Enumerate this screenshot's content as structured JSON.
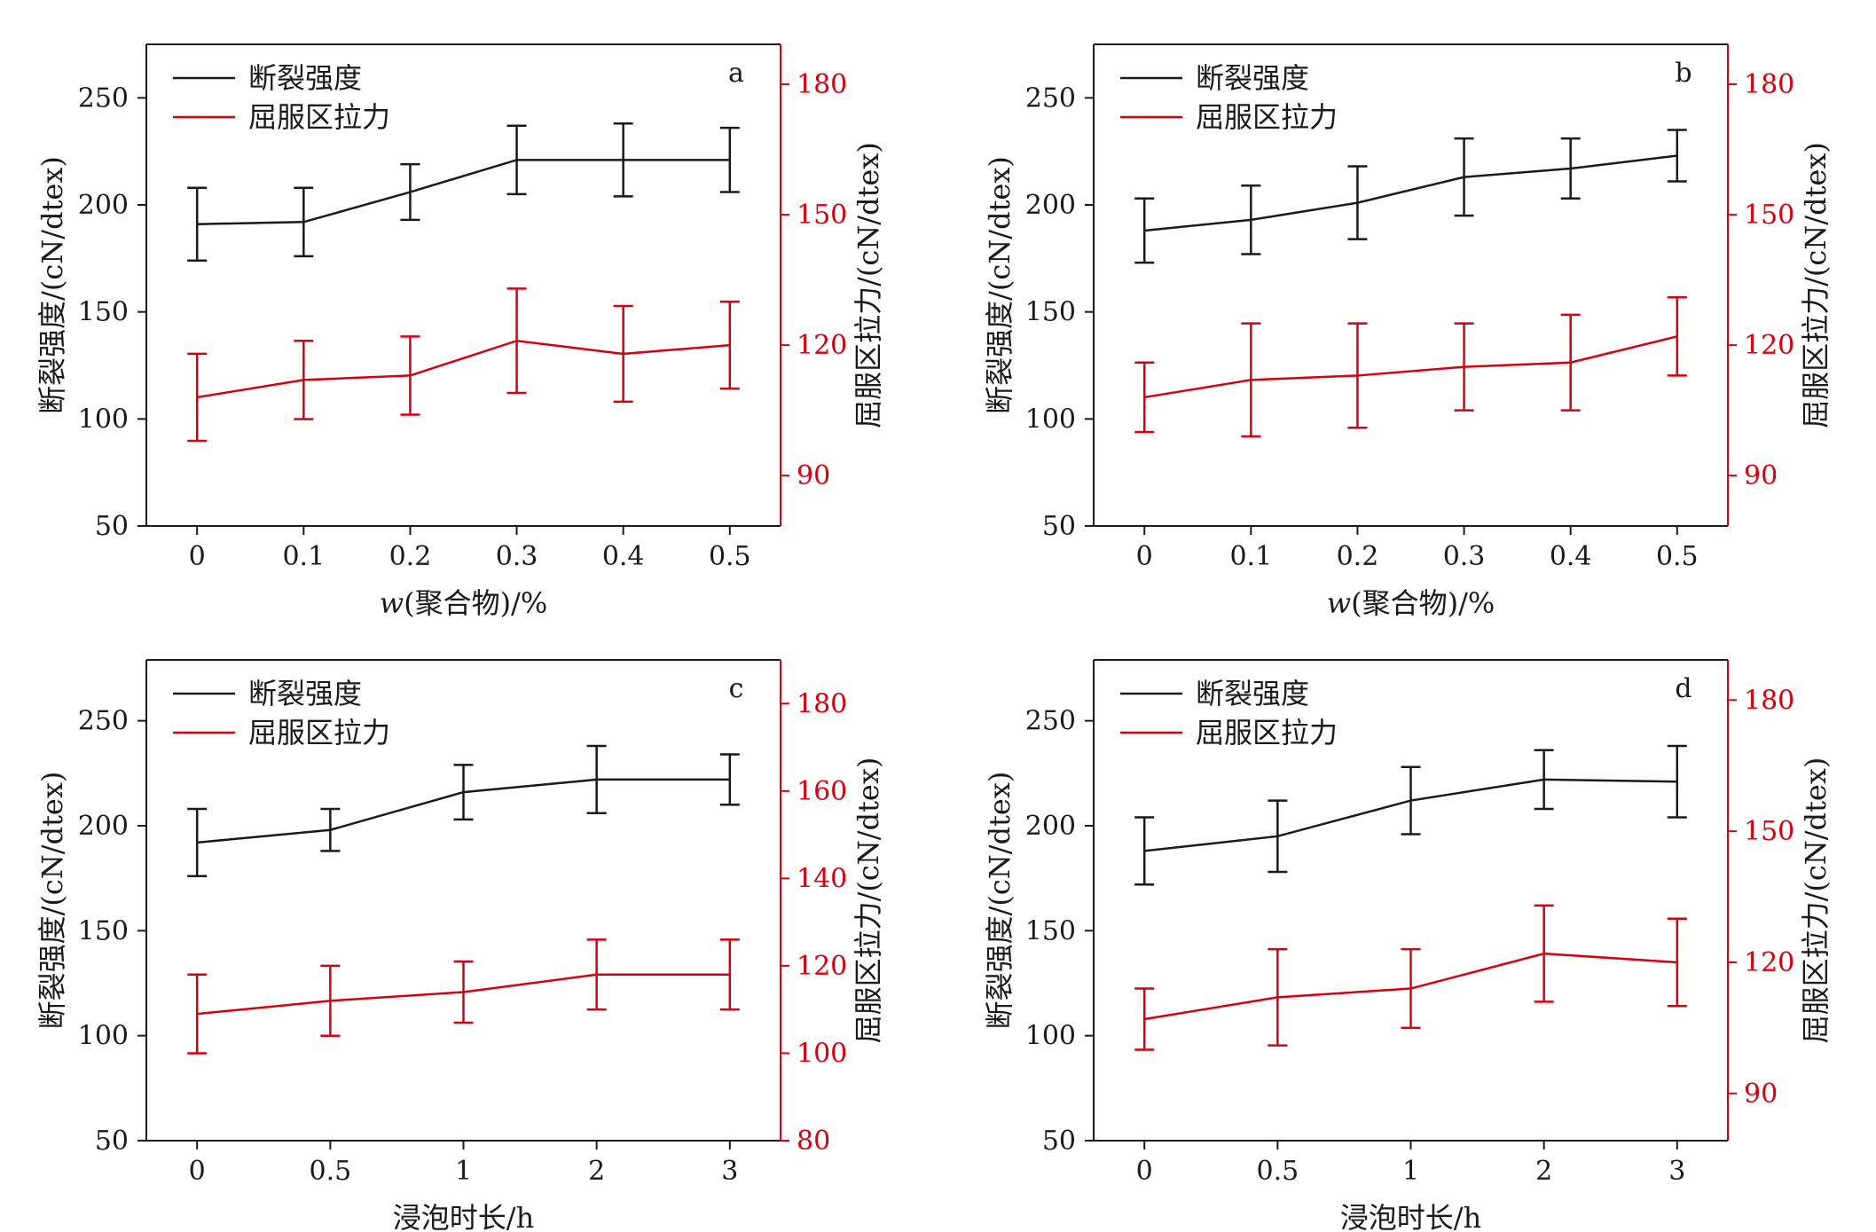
{
  "colors": {
    "black_series": "#1a1a1a",
    "red_series": "#d7000f"
  },
  "chart_data": [
    {
      "id": "a",
      "type": "line",
      "panel_label": "a",
      "xlabel_italic": "w",
      "xlabel_rest": "(聚合物)/%",
      "ylabel": "断裂强度/(cN/dtex)",
      "y2label": "屈服区拉力/(cN/dtex)",
      "categories": [
        "0",
        "0.1",
        "0.2",
        "0.3",
        "0.4",
        "0.5"
      ],
      "ylim": [
        50,
        275
      ],
      "yticks": [
        50,
        100,
        150,
        200,
        250
      ],
      "y2lim": [
        78.4,
        189.2
      ],
      "y2ticks": [
        90,
        120,
        150,
        180
      ],
      "legend_position": "top-left",
      "series": [
        {
          "name": "断裂强度",
          "axis": "left",
          "values": [
            191,
            192,
            206,
            221,
            221,
            221
          ],
          "err": [
            17,
            16,
            13,
            16,
            17,
            15
          ]
        },
        {
          "name": "屈服区拉力",
          "axis": "right",
          "values": [
            108,
            112,
            113,
            121,
            118,
            120
          ],
          "err": [
            10,
            9,
            9,
            12,
            11,
            10
          ]
        }
      ]
    },
    {
      "id": "b",
      "type": "line",
      "panel_label": "b",
      "xlabel_italic": "w",
      "xlabel_rest": "(聚合物)/%",
      "ylabel": "断裂强度/(cN/dtex)",
      "y2label": "屈服区拉力/(cN/dtex)",
      "categories": [
        "0",
        "0.1",
        "0.2",
        "0.3",
        "0.4",
        "0.5"
      ],
      "ylim": [
        50,
        275
      ],
      "yticks": [
        50,
        100,
        150,
        200,
        250
      ],
      "y2lim": [
        78.4,
        189.2
      ],
      "y2ticks": [
        90,
        120,
        150,
        180
      ],
      "legend_position": "top-left",
      "series": [
        {
          "name": "断裂强度",
          "axis": "left",
          "values": [
            188,
            193,
            201,
            213,
            217,
            223
          ],
          "err": [
            15,
            16,
            17,
            18,
            14,
            12
          ]
        },
        {
          "name": "屈服区拉力",
          "axis": "right",
          "values": [
            108,
            112,
            113,
            115,
            116,
            122
          ],
          "err": [
            8,
            13,
            12,
            10,
            11,
            9
          ]
        }
      ]
    },
    {
      "id": "c",
      "type": "line",
      "panel_label": "c",
      "xlabel_italic": "",
      "xlabel_rest": "浸泡时长/h",
      "ylabel": "断裂强度/(cN/dtex)",
      "y2label": "屈服区拉力/(cN/dtex)",
      "categories": [
        "0",
        "0.5",
        "1",
        "2",
        "3"
      ],
      "ylim": [
        50,
        279
      ],
      "yticks": [
        50,
        100,
        150,
        200,
        250
      ],
      "y2lim": [
        80,
        190
      ],
      "y2ticks": [
        80,
        100,
        120,
        140,
        160,
        180
      ],
      "legend_position": "top-left",
      "series": [
        {
          "name": "断裂强度",
          "axis": "left",
          "values": [
            192,
            198,
            216,
            222,
            222
          ],
          "err": [
            16,
            10,
            13,
            16,
            12
          ]
        },
        {
          "name": "屈服区拉力",
          "axis": "right",
          "values": [
            109,
            112,
            114,
            118,
            118
          ],
          "err": [
            9,
            8,
            7,
            8,
            8
          ]
        }
      ]
    },
    {
      "id": "d",
      "type": "line",
      "panel_label": "d",
      "xlabel_italic": "",
      "xlabel_rest": "浸泡时长/h",
      "ylabel": "断裂强度/(cN/dtex)",
      "y2label": "屈服区拉力/(cN/dtex)",
      "categories": [
        "0",
        "0.5",
        "1",
        "2",
        "3"
      ],
      "ylim": [
        50,
        279
      ],
      "yticks": [
        50,
        100,
        150,
        200,
        250
      ],
      "y2lim": [
        79.2,
        189.2
      ],
      "y2ticks": [
        90,
        120,
        150,
        180
      ],
      "legend_position": "top-left",
      "series": [
        {
          "name": "断裂强度",
          "axis": "left",
          "values": [
            188,
            195,
            212,
            222,
            221
          ],
          "err": [
            16,
            17,
            16,
            14,
            17
          ]
        },
        {
          "name": "屈服区拉力",
          "axis": "right",
          "values": [
            107,
            112,
            114,
            122,
            120
          ],
          "err": [
            7,
            11,
            9,
            11,
            10
          ]
        }
      ]
    }
  ]
}
